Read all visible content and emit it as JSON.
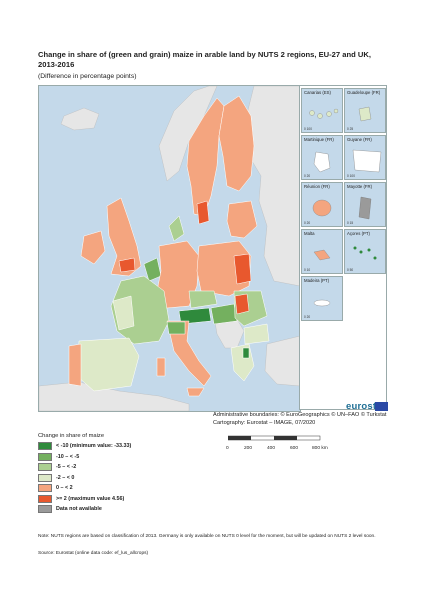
{
  "title": "Change in share of (green and grain) maize in arable land by NUTS 2 regions, EU-27 and UK, 2013-2016",
  "subtitle": "(Difference in percentage points)",
  "insets": [
    {
      "name": "Canarias (ES)",
      "scale": "0  100"
    },
    {
      "name": "Guadeloupe (FR)",
      "scale": "0  25"
    },
    {
      "name": "Martinique (FR)",
      "scale": "0  20"
    },
    {
      "name": "Guyane (FR)",
      "scale": "0  100"
    },
    {
      "name": "Réunion (FR)",
      "scale": "0  20"
    },
    {
      "name": "Mayotte (FR)",
      "scale": "0  15"
    },
    {
      "name": "Malta",
      "scale": "0  10"
    },
    {
      "name": "Açores (PT)",
      "scale": "0  50"
    },
    {
      "name": "Madeira (PT)",
      "scale": "0  20"
    }
  ],
  "logo": "eurostat",
  "credits": {
    "boundaries": "Administrative boundaries: © EuroGeographics © UN–FAO © Turkstat",
    "cartography": "Cartography: Eurostat – IMAGE, 07/2020"
  },
  "scale_bar": {
    "labels": [
      "0",
      "200",
      "400",
      "600",
      "800 km"
    ]
  },
  "legend": {
    "title": "Change in share of maize",
    "items": [
      {
        "label": "< -10 (minimum value: -33.33)",
        "color": "#2f8a3c"
      },
      {
        "label": "-10 – < -5",
        "color": "#74b05f"
      },
      {
        "label": "-5 – < -2",
        "color": "#abcf91"
      },
      {
        "label": "-2 – < 0",
        "color": "#dde9c8"
      },
      {
        "label": "0 – < 2",
        "color": "#f4a57f"
      },
      {
        "label": ">= 2 (maximum value 4.56)",
        "color": "#e8582e"
      },
      {
        "label": "Data not available",
        "color": "#9a9a9a"
      }
    ]
  },
  "note": "Note: NUTS regions are based on classification of 2013. Germany is only available on NUTS 0 level for the moment, but will be updated on NUTS 2 level soon.",
  "source": "Source: Eurostat (online data code: ef_lus_allcrops)",
  "colors": {
    "sea": "#c4d9ea",
    "non_eu": "#e6e6e6"
  }
}
